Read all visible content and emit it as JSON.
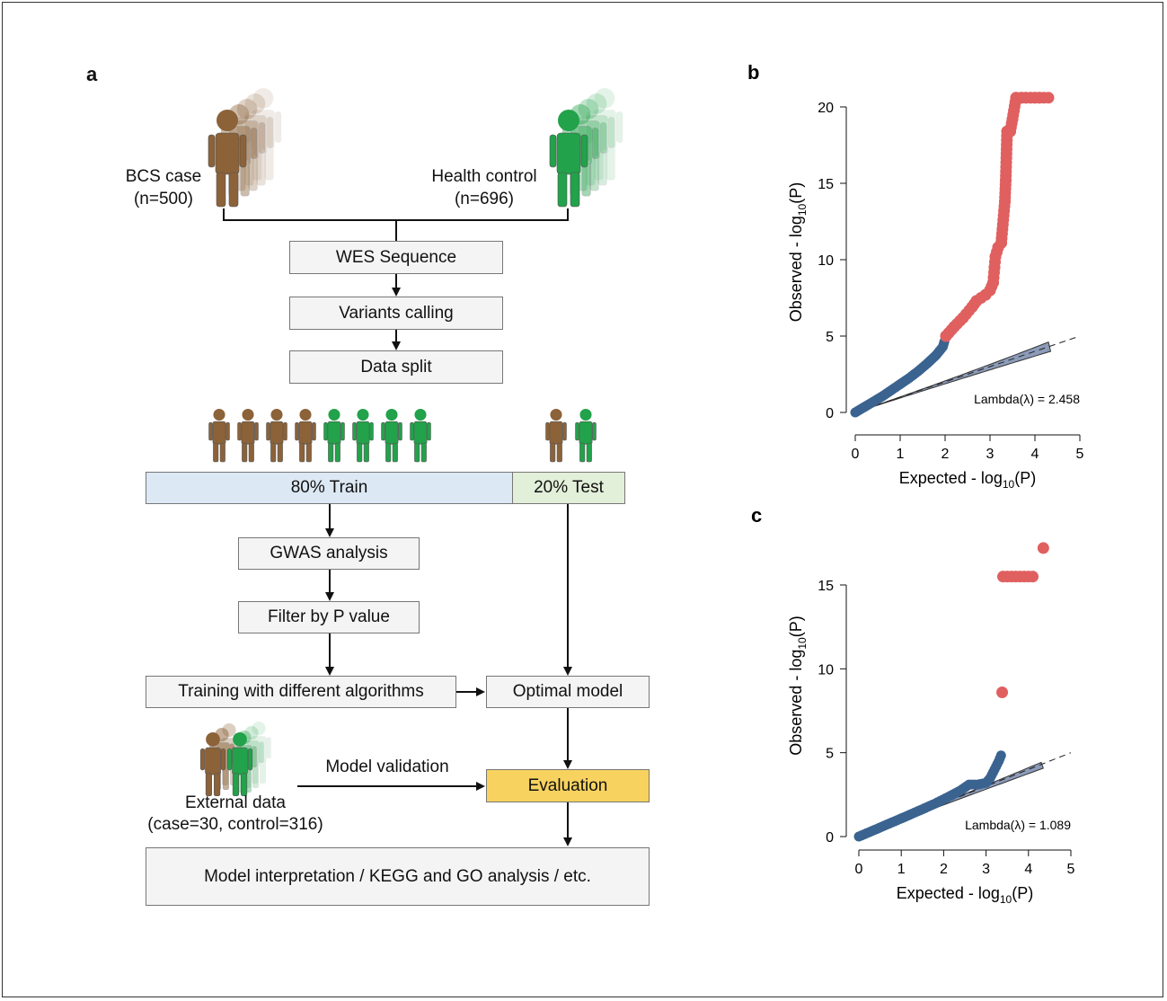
{
  "panel_a": {
    "letter": "a",
    "case_label": "BCS case",
    "case_n": "(n=500)",
    "control_label": "Health control",
    "control_n": "(n=696)",
    "steps": {
      "wes": "WES Sequence",
      "variants": "Variants calling",
      "split": "Data split",
      "train": "80% Train",
      "test": "20% Test",
      "gwas": "GWAS analysis",
      "filter": "Filter by P value",
      "training": "Training with different algorithms",
      "optimal": "Optimal model",
      "evaluation": "Evaluation",
      "interpretation": "Model interpretation / KEGG and GO analysis / etc."
    },
    "validation_label": "Model validation",
    "external_label": "External data",
    "external_n": "(case=30, control=316)",
    "colors": {
      "case": "#8c6239",
      "control": "#22a24a",
      "train_fill": "#dce8f4",
      "test_fill": "#e2efd9",
      "eval_fill": "#f7d25f"
    }
  },
  "chart_data": [
    {
      "type": "scatter",
      "letter": "b",
      "xlabel": "Expected - log10(P)",
      "ylabel": "Observed - log10(P)",
      "xlim": [
        0,
        5
      ],
      "ylim": [
        0,
        21
      ],
      "xticks": [
        0,
        1,
        2,
        3,
        4,
        5
      ],
      "yticks": [
        0,
        5,
        10,
        15,
        20
      ],
      "lambda_text": "Lambda(λ) = 2.458",
      "colors": {
        "normal": "#3a6390",
        "significant": "#e06060",
        "band": "#8c9bb8"
      },
      "series": [
        {
          "values": [
            [
              0,
              0
            ],
            [
              0.2,
              0.35
            ],
            [
              0.4,
              0.7
            ],
            [
              0.6,
              1.05
            ],
            [
              0.8,
              1.45
            ],
            [
              1.0,
              1.85
            ],
            [
              1.2,
              2.25
            ],
            [
              1.4,
              2.7
            ],
            [
              1.6,
              3.2
            ],
            [
              1.8,
              3.75
            ],
            [
              1.95,
              4.3
            ],
            [
              2.0,
              4.8
            ]
          ]
        },
        {
          "values": [
            [
              2.02,
              5.0
            ],
            [
              2.2,
              5.6
            ],
            [
              2.4,
              6.2
            ],
            [
              2.6,
              6.9
            ],
            [
              2.7,
              7.3
            ],
            [
              2.9,
              7.7
            ],
            [
              3.0,
              8.0
            ],
            [
              3.07,
              8.5
            ],
            [
              3.1,
              9.5
            ],
            [
              3.12,
              10.2
            ],
            [
              3.18,
              10.8
            ],
            [
              3.25,
              11.1
            ],
            [
              3.33,
              13.8
            ],
            [
              3.35,
              15.2
            ],
            [
              3.38,
              18.4
            ],
            [
              3.45,
              18.4
            ],
            [
              3.5,
              19.2
            ],
            [
              3.58,
              20.6
            ],
            [
              3.7,
              20.6
            ],
            [
              3.8,
              20.6
            ],
            [
              3.9,
              20.6
            ],
            [
              4.0,
              20.6
            ],
            [
              4.1,
              20.6
            ],
            [
              4.3,
              20.6
            ]
          ]
        }
      ]
    },
    {
      "type": "scatter",
      "letter": "c",
      "xlabel": "Expected - log10(P)",
      "ylabel": "Observed - log10(P)",
      "xlim": [
        0,
        5
      ],
      "ylim": [
        0,
        18
      ],
      "xticks": [
        0,
        1,
        2,
        3,
        4,
        5
      ],
      "yticks": [
        0,
        5,
        10,
        15
      ],
      "lambda_text": "Lambda(λ) = 1.089",
      "colors": {
        "normal": "#3a6390",
        "significant": "#e06060",
        "band": "#8c9bb8"
      },
      "series": [
        {
          "values": [
            [
              0,
              0
            ],
            [
              0.3,
              0.32
            ],
            [
              0.6,
              0.65
            ],
            [
              0.9,
              0.97
            ],
            [
              1.2,
              1.3
            ],
            [
              1.5,
              1.63
            ],
            [
              1.8,
              1.97
            ],
            [
              2.1,
              2.35
            ],
            [
              2.4,
              2.75
            ],
            [
              2.6,
              3.1
            ],
            [
              2.8,
              3.1
            ],
            [
              3.0,
              3.2
            ],
            [
              3.1,
              3.5
            ],
            [
              3.2,
              4.0
            ],
            [
              3.3,
              4.5
            ],
            [
              3.38,
              5.0
            ]
          ]
        },
        {
          "values": [
            [
              3.38,
              8.6
            ],
            [
              3.4,
              15.5
            ],
            [
              3.5,
              15.5
            ],
            [
              3.6,
              15.5
            ],
            [
              3.7,
              15.5
            ],
            [
              3.8,
              15.5
            ],
            [
              3.9,
              15.5
            ],
            [
              4.0,
              15.5
            ],
            [
              4.1,
              15.5
            ],
            [
              4.35,
              17.2
            ]
          ]
        }
      ]
    }
  ]
}
